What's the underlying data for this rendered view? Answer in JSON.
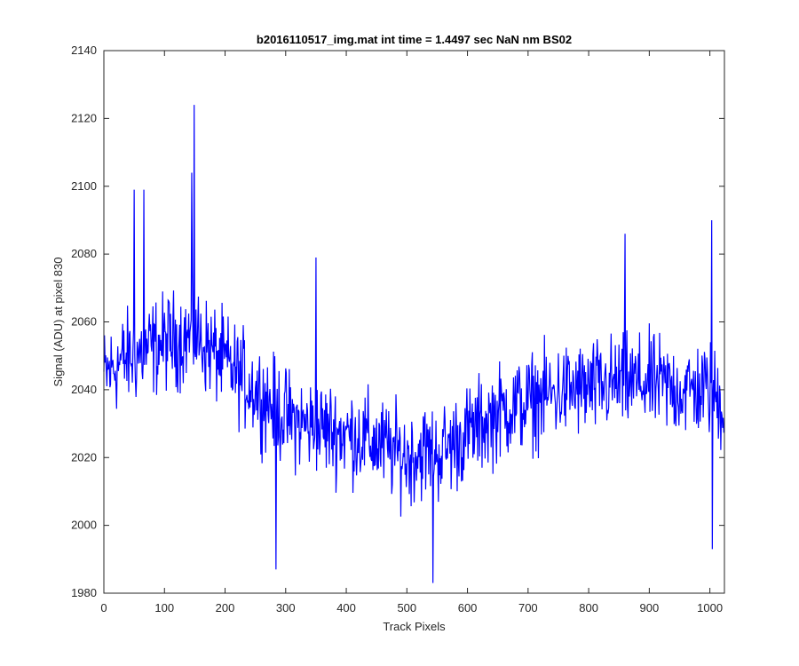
{
  "chart_data": {
    "type": "line",
    "title": "b2016110517_img.mat int time = 1.4497 sec  NaN nm BS02",
    "xlabel": "Track Pixels",
    "ylabel": "Signal (ADU) at pixel 830",
    "xlim": [
      0,
      1024
    ],
    "ylim": [
      1980,
      2140
    ],
    "xticks": [
      0,
      100,
      200,
      300,
      400,
      500,
      600,
      700,
      800,
      900,
      1000
    ],
    "yticks": [
      1980,
      2000,
      2020,
      2040,
      2060,
      2080,
      2100,
      2120,
      2140
    ],
    "grid": false,
    "line_color": "#0000ff",
    "series": [
      {
        "x": [
          0,
          25,
          50,
          75,
          100,
          125,
          150,
          175,
          200,
          225,
          250,
          275,
          300,
          325,
          350,
          375,
          400,
          425,
          450,
          475,
          500,
          525,
          550,
          575,
          600,
          625,
          650,
          675,
          700,
          725,
          750,
          775,
          800,
          825,
          850,
          875,
          900,
          925,
          950,
          975,
          1000,
          1023
        ],
        "values": [
          2044,
          2048,
          2050,
          2052,
          2054,
          2055,
          2056,
          2052,
          2048,
          2044,
          2040,
          2036,
          2032,
          2030,
          2029,
          2028,
          2027,
          2026,
          2024,
          2022,
          2020,
          2022,
          2021,
          2024,
          2027,
          2030,
          2033,
          2035,
          2036,
          2038,
          2039,
          2040,
          2040,
          2041,
          2042,
          2042,
          2042,
          2041,
          2040,
          2040,
          2040,
          2035
        ],
        "noise_amplitude": 14,
        "points": 1024,
        "spikes": [
          {
            "x": 50,
            "y": 2099
          },
          {
            "x": 66,
            "y": 2099
          },
          {
            "x": 149,
            "y": 2124
          },
          {
            "x": 145,
            "y": 2104
          },
          {
            "x": 284,
            "y": 1987
          },
          {
            "x": 350,
            "y": 2079
          },
          {
            "x": 543,
            "y": 1983
          },
          {
            "x": 860,
            "y": 2086
          },
          {
            "x": 1003,
            "y": 2090
          },
          {
            "x": 1004,
            "y": 1993
          }
        ]
      }
    ]
  }
}
